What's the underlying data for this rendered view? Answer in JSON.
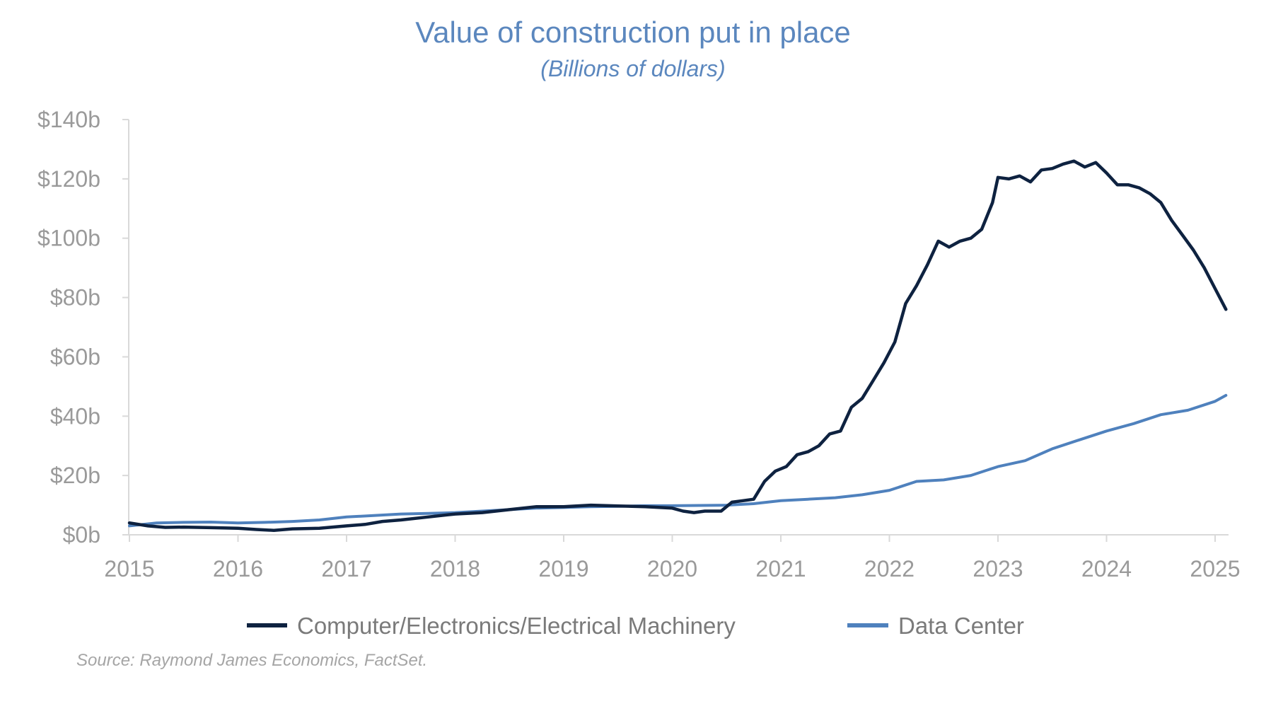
{
  "chart_data": {
    "type": "line",
    "title": "Value of construction put in place",
    "subtitle": "(Billions of dollars)",
    "source": "Source: Raymond James Economics, FactSet.",
    "xlabel": "",
    "ylabel": "",
    "xlim": [
      2015,
      2025.1
    ],
    "ylim": [
      0,
      140
    ],
    "y_ticks": [
      0,
      20,
      40,
      60,
      80,
      100,
      120,
      140
    ],
    "y_tick_labels": [
      "$0b",
      "$20b",
      "$40b",
      "$60b",
      "$80b",
      "$100b",
      "$120b",
      "$140b"
    ],
    "x_ticks": [
      2015,
      2016,
      2017,
      2018,
      2019,
      2020,
      2021,
      2022,
      2023,
      2024,
      2025
    ],
    "x_tick_labels": [
      "2015",
      "2016",
      "2017",
      "2018",
      "2019",
      "2020",
      "2021",
      "2022",
      "2023",
      "2024",
      "2025"
    ],
    "grid": false,
    "legend_position": "bottom",
    "series": [
      {
        "name": "Computer/Electronics/Electrical Machinery",
        "color": "#0e2240",
        "points": [
          [
            2015.0,
            4
          ],
          [
            2015.17,
            3
          ],
          [
            2015.33,
            2.5
          ],
          [
            2015.5,
            2.6
          ],
          [
            2015.75,
            2.4
          ],
          [
            2016.0,
            2.2
          ],
          [
            2016.17,
            1.8
          ],
          [
            2016.33,
            1.5
          ],
          [
            2016.5,
            2
          ],
          [
            2016.75,
            2.2
          ],
          [
            2017.0,
            3
          ],
          [
            2017.17,
            3.5
          ],
          [
            2017.33,
            4.5
          ],
          [
            2017.5,
            5
          ],
          [
            2017.75,
            6
          ],
          [
            2018.0,
            7
          ],
          [
            2018.25,
            7.5
          ],
          [
            2018.5,
            8.5
          ],
          [
            2018.75,
            9.5
          ],
          [
            2019.0,
            9.5
          ],
          [
            2019.25,
            10
          ],
          [
            2019.5,
            9.7
          ],
          [
            2019.75,
            9.5
          ],
          [
            2020.0,
            9
          ],
          [
            2020.1,
            8
          ],
          [
            2020.2,
            7.5
          ],
          [
            2020.3,
            8
          ],
          [
            2020.45,
            8
          ],
          [
            2020.55,
            11
          ],
          [
            2020.65,
            11.5
          ],
          [
            2020.75,
            12
          ],
          [
            2020.85,
            18
          ],
          [
            2020.95,
            21.5
          ],
          [
            2021.05,
            23
          ],
          [
            2021.15,
            27
          ],
          [
            2021.25,
            28
          ],
          [
            2021.35,
            30
          ],
          [
            2021.45,
            34
          ],
          [
            2021.55,
            35
          ],
          [
            2021.65,
            43
          ],
          [
            2021.75,
            46
          ],
          [
            2021.85,
            52
          ],
          [
            2021.95,
            58
          ],
          [
            2022.05,
            65
          ],
          [
            2022.15,
            78
          ],
          [
            2022.25,
            84
          ],
          [
            2022.35,
            91
          ],
          [
            2022.45,
            99
          ],
          [
            2022.55,
            97
          ],
          [
            2022.65,
            99
          ],
          [
            2022.75,
            100
          ],
          [
            2022.85,
            103
          ],
          [
            2022.95,
            112
          ],
          [
            2023.0,
            120.5
          ],
          [
            2023.1,
            120
          ],
          [
            2023.2,
            121
          ],
          [
            2023.3,
            119
          ],
          [
            2023.4,
            123
          ],
          [
            2023.5,
            123.5
          ],
          [
            2023.6,
            125
          ],
          [
            2023.7,
            126
          ],
          [
            2023.8,
            124
          ],
          [
            2023.9,
            125.5
          ],
          [
            2024.0,
            122
          ],
          [
            2024.1,
            118
          ],
          [
            2024.2,
            118
          ],
          [
            2024.3,
            117
          ],
          [
            2024.4,
            115
          ],
          [
            2024.5,
            112
          ],
          [
            2024.6,
            106
          ],
          [
            2024.7,
            101
          ],
          [
            2024.8,
            96
          ],
          [
            2024.9,
            90
          ],
          [
            2025.0,
            83
          ],
          [
            2025.1,
            76
          ]
        ]
      },
      {
        "name": "Data Center",
        "color": "#4f81bd",
        "points": [
          [
            2015.0,
            3
          ],
          [
            2015.25,
            4
          ],
          [
            2015.5,
            4.2
          ],
          [
            2015.75,
            4.3
          ],
          [
            2016.0,
            4
          ],
          [
            2016.25,
            4.2
          ],
          [
            2016.5,
            4.5
          ],
          [
            2016.75,
            5
          ],
          [
            2017.0,
            6
          ],
          [
            2017.25,
            6.5
          ],
          [
            2017.5,
            7
          ],
          [
            2017.75,
            7.2
          ],
          [
            2018.0,
            7.5
          ],
          [
            2018.25,
            8
          ],
          [
            2018.5,
            8.5
          ],
          [
            2018.75,
            9
          ],
          [
            2019.0,
            9.2
          ],
          [
            2019.25,
            9.5
          ],
          [
            2019.5,
            9.6
          ],
          [
            2019.75,
            9.8
          ],
          [
            2020.0,
            9.8
          ],
          [
            2020.25,
            9.9
          ],
          [
            2020.5,
            10
          ],
          [
            2020.75,
            10.5
          ],
          [
            2021.0,
            11.5
          ],
          [
            2021.25,
            12
          ],
          [
            2021.5,
            12.5
          ],
          [
            2021.75,
            13.5
          ],
          [
            2022.0,
            15
          ],
          [
            2022.25,
            18
          ],
          [
            2022.5,
            18.5
          ],
          [
            2022.75,
            20
          ],
          [
            2023.0,
            23
          ],
          [
            2023.25,
            25
          ],
          [
            2023.5,
            29
          ],
          [
            2023.75,
            32
          ],
          [
            2024.0,
            35
          ],
          [
            2024.25,
            37.5
          ],
          [
            2024.5,
            40.5
          ],
          [
            2024.75,
            42
          ],
          [
            2025.0,
            45
          ],
          [
            2025.1,
            47
          ]
        ]
      }
    ]
  }
}
